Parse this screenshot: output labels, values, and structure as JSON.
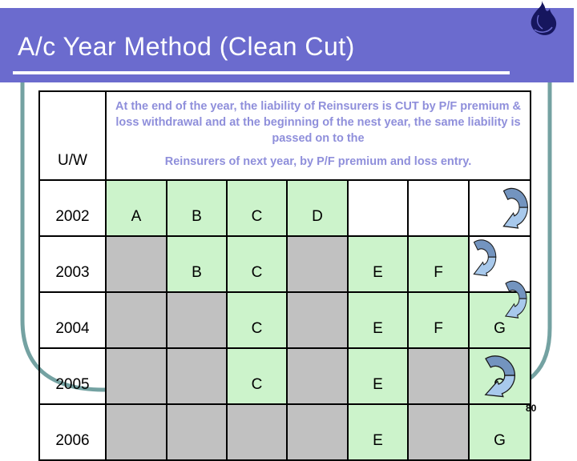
{
  "title": "A/c Year Method (Clean Cut)",
  "page_number": "80",
  "header": {
    "uw_label": "U/W",
    "note_line1": "At the end of the year, the liability of Reinsurers is CUT by P/F premium & loss withdrawal and at the beginning of the nest year, the same liability is passed on to the",
    "note_line2": "Reinsurers of next year, by P/F premium and loss entry."
  },
  "table": {
    "rows": [
      {
        "year": "2002",
        "cells": [
          {
            "t": "A",
            "bg": "green"
          },
          {
            "t": "B",
            "bg": "green"
          },
          {
            "t": "C",
            "bg": "green"
          },
          {
            "t": "D",
            "bg": "green"
          },
          {
            "t": "",
            "bg": "white"
          },
          {
            "t": "",
            "bg": "white"
          },
          {
            "t": "",
            "bg": "white"
          }
        ]
      },
      {
        "year": "2003",
        "cells": [
          {
            "t": "",
            "bg": "gray"
          },
          {
            "t": "B",
            "bg": "green"
          },
          {
            "t": "C",
            "bg": "green"
          },
          {
            "t": "",
            "bg": "gray"
          },
          {
            "t": "E",
            "bg": "green"
          },
          {
            "t": "F",
            "bg": "green"
          },
          {
            "t": "",
            "bg": "white"
          }
        ]
      },
      {
        "year": "2004",
        "cells": [
          {
            "t": "",
            "bg": "gray"
          },
          {
            "t": "",
            "bg": "gray"
          },
          {
            "t": "C",
            "bg": "green"
          },
          {
            "t": "",
            "bg": "gray"
          },
          {
            "t": "E",
            "bg": "green"
          },
          {
            "t": "F",
            "bg": "green"
          },
          {
            "t": "G",
            "bg": "green"
          }
        ]
      },
      {
        "year": "2005",
        "cells": [
          {
            "t": "",
            "bg": "gray"
          },
          {
            "t": "",
            "bg": "gray"
          },
          {
            "t": "C",
            "bg": "green"
          },
          {
            "t": "",
            "bg": "gray"
          },
          {
            "t": "E",
            "bg": "green"
          },
          {
            "t": "",
            "bg": "gray"
          },
          {
            "t": "G",
            "bg": "green"
          }
        ]
      },
      {
        "year": "2006",
        "cells": [
          {
            "t": "",
            "bg": "gray"
          },
          {
            "t": "",
            "bg": "gray"
          },
          {
            "t": "",
            "bg": "gray"
          },
          {
            "t": "",
            "bg": "gray"
          },
          {
            "t": "E",
            "bg": "green"
          },
          {
            "t": "",
            "bg": "gray"
          },
          {
            "t": "G",
            "bg": "green"
          }
        ]
      }
    ]
  },
  "colors": {
    "title_bar": "#6b6bce",
    "note_text": "#8f8fdb",
    "cell_green": "#ccf3cb",
    "cell_gray": "#c1c1c1",
    "arrow_dark": "#7394bf",
    "arrow_light": "#a8c9ec",
    "frame_line": "#74a2a2",
    "logo_navy": "#16165e"
  },
  "icons": {
    "logo": "flame-logo-icon",
    "arrow": "curved-arrow-icon"
  }
}
